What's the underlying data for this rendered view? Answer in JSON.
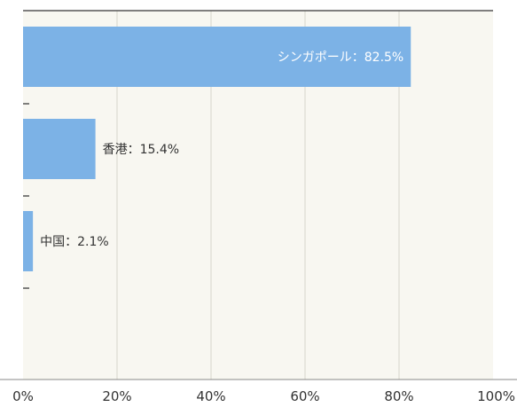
{
  "chart_data": {
    "type": "bar",
    "orientation": "horizontal",
    "title": "",
    "xlabel": "",
    "ylabel": "",
    "xlim": [
      0,
      100
    ],
    "x_ticks": [
      "0%",
      "20%",
      "40%",
      "60%",
      "80%",
      "100%"
    ],
    "grid": "vertical",
    "categories": [
      "シンガポール",
      "香港",
      "中国"
    ],
    "values": [
      82.5,
      15.4,
      2.1
    ],
    "data_labels": [
      "シンガポール：82.5%",
      "香港：15.4%",
      "中国：2.1%"
    ],
    "colors": {
      "bar": "#7cb2e6",
      "plot_background": "#f8f7f1",
      "grid": "#d6d4cc",
      "axis": "#555555",
      "tick_text": "#333333",
      "inside_label": "#ffffff",
      "outside_label": "#333333"
    }
  }
}
